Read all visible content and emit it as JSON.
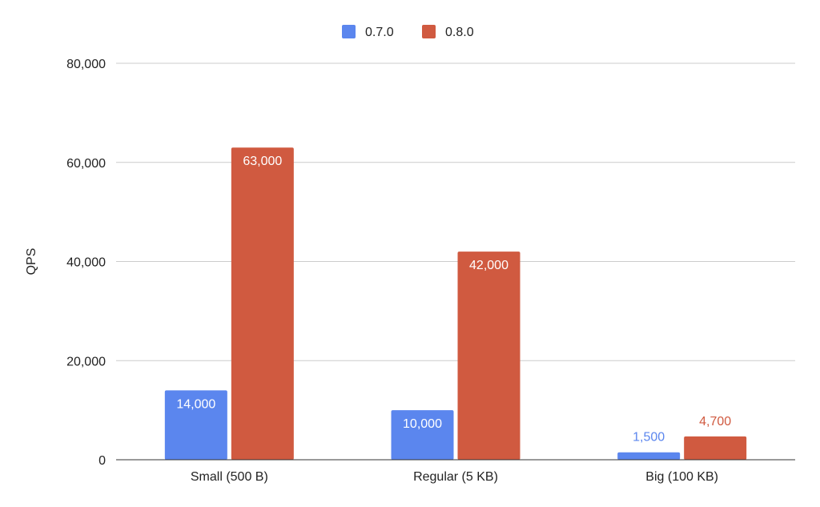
{
  "chart_data": {
    "type": "bar",
    "categories": [
      "Small (500 B)",
      "Regular (5 KB)",
      "Big (100 KB)"
    ],
    "series": [
      {
        "name": "0.7.0",
        "color": "#5b86ee",
        "values": [
          14000,
          10000,
          1500
        ],
        "labels": [
          "14,000",
          "10,000",
          "1,500"
        ]
      },
      {
        "name": "0.8.0",
        "color": "#d05a40",
        "values": [
          63000,
          42000,
          4700
        ],
        "labels": [
          "63,000",
          "42,000",
          "4,700"
        ]
      }
    ],
    "title": "",
    "xlabel": "",
    "ylabel": "QPS",
    "ylim": [
      0,
      80000
    ],
    "yticks": [
      0,
      20000,
      40000,
      60000,
      80000
    ],
    "ytick_labels": [
      "0",
      "20,000",
      "40,000",
      "60,000",
      "80,000"
    ],
    "grid": true,
    "legend": "top-center"
  }
}
